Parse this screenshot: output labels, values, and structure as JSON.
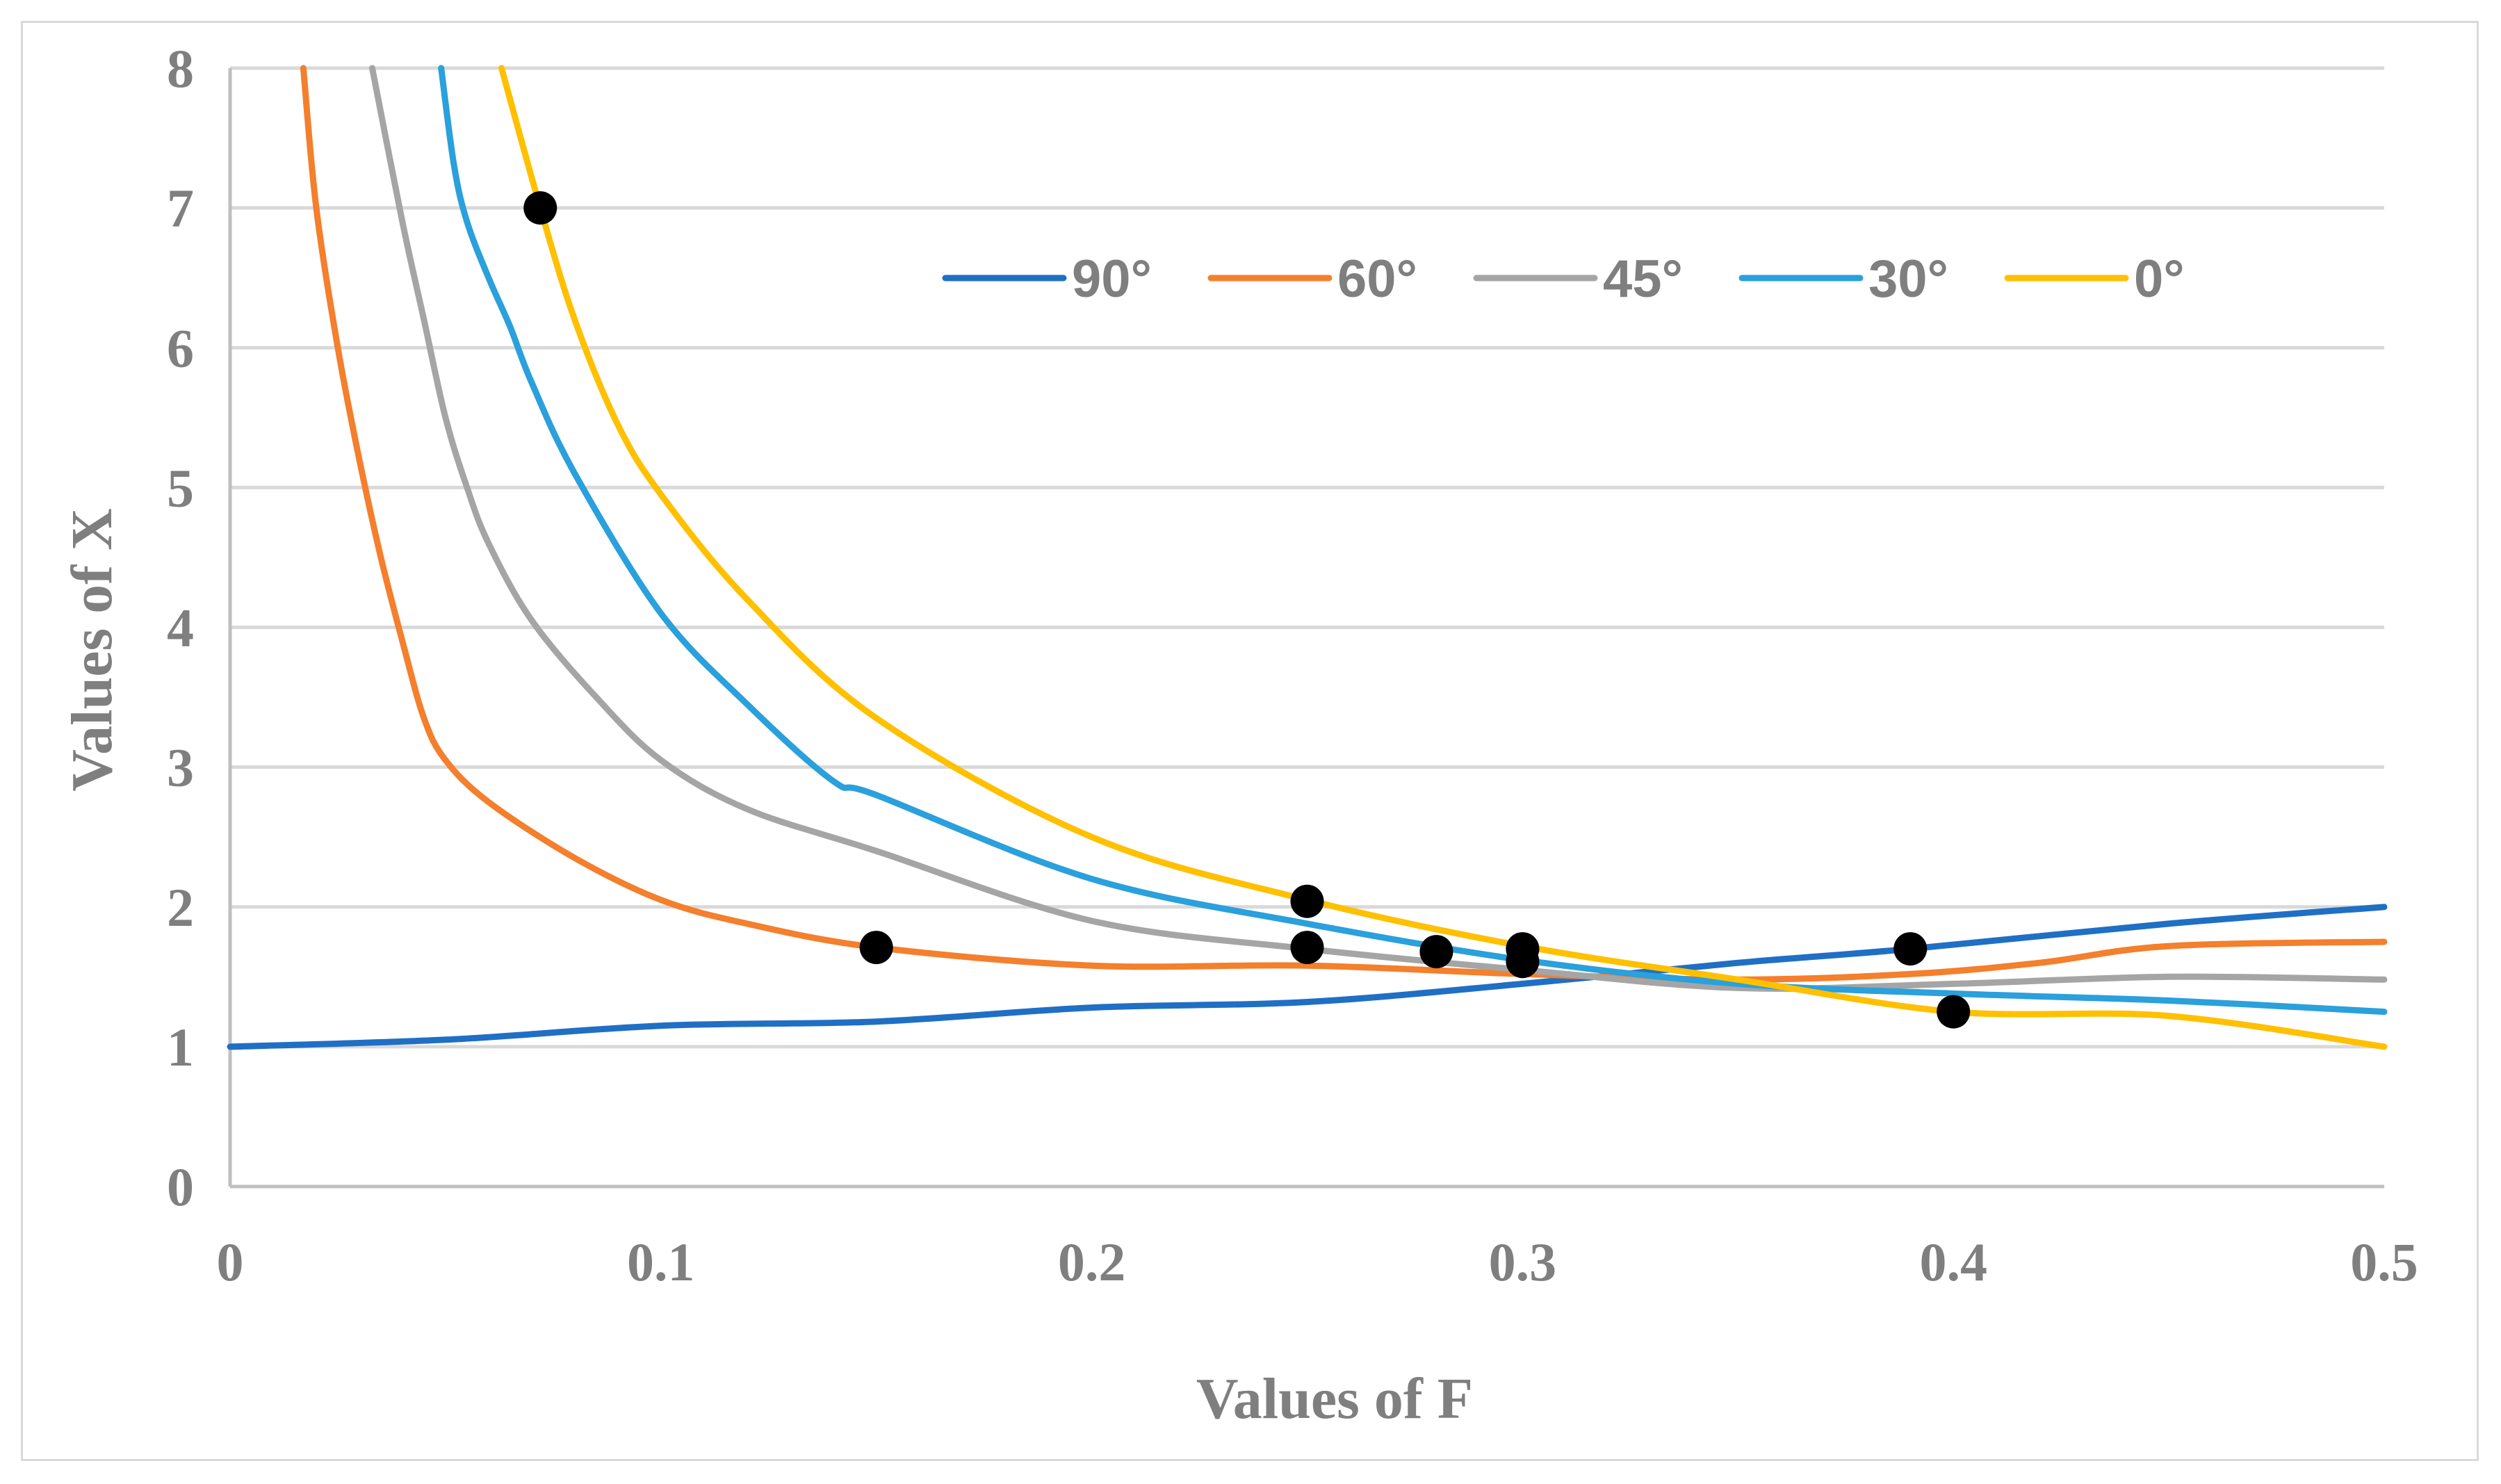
{
  "chart_data": {
    "type": "line",
    "title": "",
    "xlabel": "Values of F",
    "ylabel": "Values of X",
    "xlim": [
      0,
      0.5
    ],
    "ylim": [
      0,
      8
    ],
    "xticks": [
      "0",
      "0.1",
      "0.2",
      "0.3",
      "0.4",
      "0.5"
    ],
    "yticks": [
      "0",
      "1",
      "2",
      "3",
      "4",
      "5",
      "6",
      "7",
      "8"
    ],
    "grid": "horizontal",
    "legend_position": "top-right",
    "series": [
      {
        "name": "90°",
        "color": "#1f6fc5",
        "x": [
          0,
          0.05,
          0.1,
          0.15,
          0.2,
          0.25,
          0.3,
          0.35,
          0.39,
          0.45,
          0.5
        ],
        "y": [
          1.0,
          1.05,
          1.15,
          1.18,
          1.28,
          1.32,
          1.45,
          1.6,
          1.7,
          1.88,
          2.0
        ]
      },
      {
        "name": "60°",
        "color": "#f47f2c",
        "x": [
          0.017,
          0.02,
          0.025,
          0.03,
          0.035,
          0.04,
          0.045,
          0.05,
          0.06,
          0.08,
          0.1,
          0.12,
          0.15,
          0.2,
          0.25,
          0.3,
          0.35,
          0.39,
          0.42,
          0.45,
          0.5
        ],
        "y": [
          8.0,
          7.0,
          6.0,
          5.2,
          4.5,
          3.9,
          3.35,
          3.05,
          2.75,
          2.35,
          2.05,
          1.88,
          1.71,
          1.58,
          1.58,
          1.52,
          1.48,
          1.52,
          1.6,
          1.72,
          1.75
        ]
      },
      {
        "name": "45°",
        "color": "#a5a5a5",
        "x": [
          0.033,
          0.04,
          0.045,
          0.05,
          0.055,
          0.06,
          0.07,
          0.085,
          0.1,
          0.12,
          0.15,
          0.2,
          0.25,
          0.3,
          0.35,
          0.4,
          0.45,
          0.5
        ],
        "y": [
          8.0,
          6.9,
          6.2,
          5.5,
          5.0,
          4.6,
          4.05,
          3.5,
          3.05,
          2.7,
          2.4,
          1.9,
          1.7,
          1.55,
          1.42,
          1.45,
          1.5,
          1.48
        ]
      },
      {
        "name": "30°",
        "color": "#2aa0dc",
        "x": [
          0.049,
          0.052,
          0.055,
          0.06,
          0.065,
          0.07,
          0.08,
          0.1,
          0.12,
          0.14,
          0.15,
          0.2,
          0.25,
          0.3,
          0.35,
          0.4,
          0.45,
          0.5
        ],
        "y": [
          8.0,
          7.3,
          6.9,
          6.5,
          6.15,
          5.75,
          5.1,
          4.1,
          3.45,
          2.9,
          2.8,
          2.2,
          1.88,
          1.62,
          1.45,
          1.38,
          1.33,
          1.25
        ]
      },
      {
        "name": "0°",
        "color": "#ffc000",
        "x": [
          0.063,
          0.072,
          0.08,
          0.09,
          0.1,
          0.12,
          0.15,
          0.2,
          0.25,
          0.3,
          0.35,
          0.4,
          0.45,
          0.5
        ],
        "y": [
          8.0,
          7.0,
          6.2,
          5.45,
          4.95,
          4.2,
          3.35,
          2.5,
          2.05,
          1.72,
          1.48,
          1.25,
          1.22,
          1.0
        ]
      }
    ],
    "markers": {
      "color": "#000000",
      "points": [
        {
          "x": 0.072,
          "y": 7.0
        },
        {
          "x": 0.15,
          "y": 1.71
        },
        {
          "x": 0.25,
          "y": 2.04
        },
        {
          "x": 0.25,
          "y": 1.71
        },
        {
          "x": 0.28,
          "y": 1.68
        },
        {
          "x": 0.3,
          "y": 1.7
        },
        {
          "x": 0.3,
          "y": 1.61
        },
        {
          "x": 0.39,
          "y": 1.7
        },
        {
          "x": 0.4,
          "y": 1.25
        }
      ]
    }
  }
}
